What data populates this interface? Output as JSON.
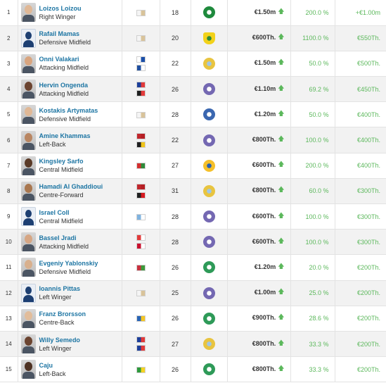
{
  "colors": {
    "link": "#1d75a3",
    "positive": "#5cb85c",
    "row_alt": "#f2f2f2"
  },
  "rows": [
    {
      "rank": "1",
      "name": "Loizos Loizou",
      "position": "Right Winger",
      "photo": "real",
      "skin": "#e0b896",
      "flags": [
        [
          "#f4f4f4",
          "#d9c39a"
        ]
      ],
      "age": "18",
      "club_colors": [
        "#1f8a3d",
        "#ffffff"
      ],
      "club_shape": "round",
      "value": "€1.50m",
      "pct": "200.0 %",
      "diff": "+€1.00m"
    },
    {
      "rank": "2",
      "name": "Rafail Mamas",
      "position": "Defensive Midfield",
      "photo": "anon",
      "skin": "",
      "flags": [
        [
          "#f4f4f4",
          "#d9c39a"
        ]
      ],
      "age": "20",
      "club_colors": [
        "#f2d21a",
        "#2f8a3a"
      ],
      "club_shape": "shield",
      "value": "€600Th.",
      "pct": "1100.0 %",
      "diff": "€550Th."
    },
    {
      "rank": "3",
      "name": "Onni Valakari",
      "position": "Attacking Midfield",
      "photo": "real",
      "skin": "#d9a57f",
      "flags": [
        [
          "#ffffff",
          "#1b4fa8"
        ],
        [
          "#1f4fa0",
          "#ffffff"
        ]
      ],
      "age": "22",
      "club_colors": [
        "#e8c440",
        "#9fc6e6"
      ],
      "club_shape": "round",
      "value": "€1.50m",
      "pct": "50.0 %",
      "diff": "€500Th."
    },
    {
      "rank": "4",
      "name": "Hervin Ongenda",
      "position": "Attacking Midfield",
      "photo": "real",
      "skin": "#6b4430",
      "flags": [
        [
          "#1e3f9a",
          "#e23a3a"
        ],
        [
          "#202020",
          "#e33b3b"
        ]
      ],
      "age": "26",
      "club_colors": [
        "#7468b2",
        "#ffffff"
      ],
      "club_shape": "round",
      "value": "€1.10m",
      "pct": "69.2 %",
      "diff": "€450Th."
    },
    {
      "rank": "5",
      "name": "Kostakis Artymatas",
      "position": "Defensive Midfield",
      "photo": "real",
      "skin": "#e0b896",
      "flags": [
        [
          "#f4f4f4",
          "#d9c39a"
        ]
      ],
      "age": "28",
      "club_colors": [
        "#3b67b0",
        "#ffffff"
      ],
      "club_shape": "round",
      "value": "€1.20m",
      "pct": "50.0 %",
      "diff": "€400Th."
    },
    {
      "rank": "6",
      "name": "Amine Khammas",
      "position": "Left-Back",
      "photo": "real",
      "skin": "#b98662",
      "flags": [
        [
          "#c0272d",
          "#b51f25"
        ],
        [
          "#202020",
          "#f0c419"
        ]
      ],
      "age": "22",
      "club_colors": [
        "#7468b2",
        "#ffffff"
      ],
      "club_shape": "round",
      "value": "€800Th.",
      "pct": "100.0 %",
      "diff": "€400Th."
    },
    {
      "rank": "7",
      "name": "Kingsley Sarfo",
      "position": "Central Midfield",
      "photo": "real",
      "skin": "#5a3a27",
      "flags": [
        [
          "#d22f2f",
          "#2e8b3a"
        ]
      ],
      "age": "27",
      "club_colors": [
        "#f5c02a",
        "#2a62b3"
      ],
      "club_shape": "round",
      "value": "€600Th.",
      "pct": "200.0 %",
      "diff": "€400Th."
    },
    {
      "rank": "8",
      "name": "Hamadi Al Ghaddioui",
      "position": "Centre-Forward",
      "photo": "real",
      "skin": "#a9774f",
      "flags": [
        [
          "#c0272d",
          "#b51f25"
        ],
        [
          "#202020",
          "#d7191f"
        ]
      ],
      "age": "31",
      "club_colors": [
        "#e8c440",
        "#9fc6e6"
      ],
      "club_shape": "round",
      "value": "€800Th.",
      "pct": "60.0 %",
      "diff": "€300Th."
    },
    {
      "rank": "9",
      "name": "Israel Coll",
      "position": "Central Midfield",
      "photo": "anon",
      "skin": "",
      "flags": [
        [
          "#7fb3e0",
          "#ffffff"
        ]
      ],
      "age": "28",
      "club_colors": [
        "#7468b2",
        "#ffffff"
      ],
      "club_shape": "round",
      "value": "€600Th.",
      "pct": "100.0 %",
      "diff": "€300Th."
    },
    {
      "rank": "10",
      "name": "Bassel Jradi",
      "position": "Attacking Midfield",
      "photo": "real",
      "skin": "#d6a684",
      "flags": [
        [
          "#e23b3b",
          "#ffffff"
        ],
        [
          "#c8102e",
          "#ffffff"
        ]
      ],
      "age": "28",
      "club_colors": [
        "#7468b2",
        "#ffffff"
      ],
      "club_shape": "round",
      "value": "€600Th.",
      "pct": "100.0 %",
      "diff": "€300Th."
    },
    {
      "rank": "11",
      "name": "Evgeniy Yablonskiy",
      "position": "Defensive Midfield",
      "photo": "real",
      "skin": "#d8b08e",
      "flags": [
        [
          "#c8313e",
          "#3c9a3c"
        ]
      ],
      "age": "26",
      "club_colors": [
        "#2e9a58",
        "#ffffff"
      ],
      "club_shape": "round",
      "value": "€1.20m",
      "pct": "20.0 %",
      "diff": "€200Th."
    },
    {
      "rank": "12",
      "name": "Ioannis Pittas",
      "position": "Left Winger",
      "photo": "anon",
      "skin": "",
      "flags": [
        [
          "#f4f4f4",
          "#d9c39a"
        ]
      ],
      "age": "25",
      "club_colors": [
        "#7468b2",
        "#ffffff"
      ],
      "club_shape": "round",
      "value": "€1.00m",
      "pct": "25.0 %",
      "diff": "€200Th."
    },
    {
      "rank": "13",
      "name": "Franz Brorsson",
      "position": "Centre-Back",
      "photo": "real",
      "skin": "#e2bd9b",
      "flags": [
        [
          "#2a65b5",
          "#f4c523"
        ]
      ],
      "age": "26",
      "club_colors": [
        "#2e9a58",
        "#ffffff"
      ],
      "club_shape": "round",
      "value": "€900Th.",
      "pct": "28.6 %",
      "diff": "€200Th."
    },
    {
      "rank": "14",
      "name": "Willy Semedo",
      "position": "Left Winger",
      "photo": "real",
      "skin": "#6b4430",
      "flags": [
        [
          "#1e3f9a",
          "#e23a3a"
        ],
        [
          "#1e3f9a",
          "#e23a3a"
        ]
      ],
      "age": "27",
      "club_colors": [
        "#e8c440",
        "#9fc6e6"
      ],
      "club_shape": "round",
      "value": "€800Th.",
      "pct": "33.3 %",
      "diff": "€200Th."
    },
    {
      "rank": "15",
      "name": "Caju",
      "position": "Left-Back",
      "photo": "real",
      "skin": "#4e3223",
      "flags": [
        [
          "#2e9a3c",
          "#f4d323"
        ]
      ],
      "age": "26",
      "club_colors": [
        "#2e9a58",
        "#ffffff"
      ],
      "club_shape": "round",
      "value": "€800Th.",
      "pct": "33.3 %",
      "diff": "€200Th."
    }
  ]
}
